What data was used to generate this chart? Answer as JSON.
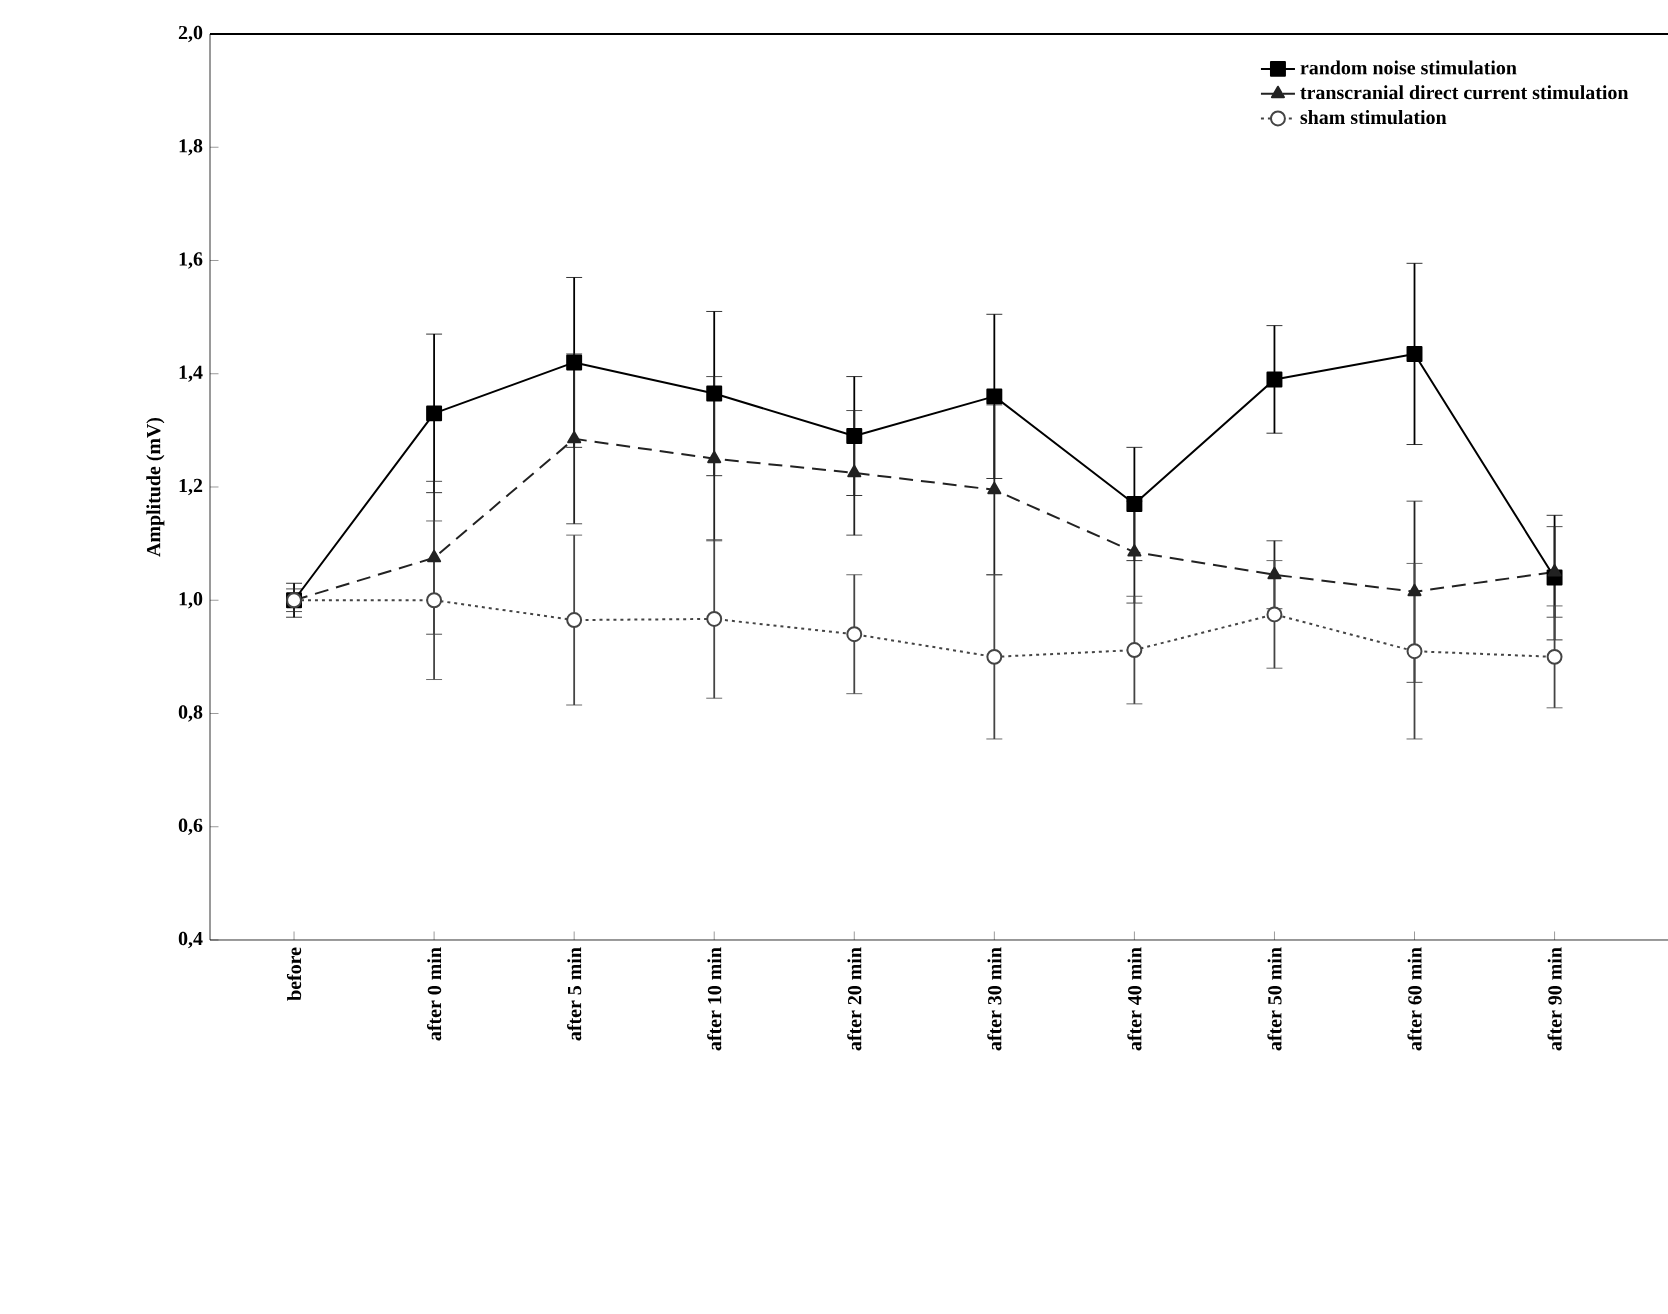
{
  "chart_data": {
    "type": "line",
    "ylabel": "Amplitude (mV)",
    "categories": [
      "before",
      "after 0 min",
      "after 5 min",
      "after 10 min",
      "after 20 min",
      "after 30 min",
      "after 40 min",
      "after 50 min",
      "after 60 min",
      "after 90 min"
    ],
    "series": [
      {
        "name": "random noise stimulation",
        "color": "#000000",
        "marker": "square",
        "line_style": "solid",
        "values": [
          1.0,
          1.33,
          1.42,
          1.365,
          1.29,
          1.36,
          1.17,
          1.39,
          1.435,
          1.04
        ],
        "errors": [
          0.03,
          0.14,
          0.15,
          0.145,
          0.105,
          0.145,
          0.1,
          0.095,
          0.16,
          0.11
        ]
      },
      {
        "name": "transcranial direct current stimulation",
        "color": "#222222",
        "marker": "triangle",
        "line_style": "dashed",
        "values": [
          1.0,
          1.075,
          1.285,
          1.25,
          1.225,
          1.195,
          1.085,
          1.045,
          1.015,
          1.05
        ],
        "errors": [
          0.02,
          0.135,
          0.15,
          0.145,
          0.11,
          0.15,
          0.09,
          0.06,
          0.16,
          0.08
        ]
      },
      {
        "name": "sham stimulation",
        "color": "#444444",
        "marker": "circle",
        "line_style": "dotted",
        "values": [
          1.0,
          1.0,
          0.965,
          0.967,
          0.94,
          0.9,
          0.912,
          0.975,
          0.91,
          0.9
        ],
        "errors": [
          0.012,
          0.14,
          0.15,
          0.14,
          0.105,
          0.145,
          0.095,
          0.095,
          0.155,
          0.09
        ]
      }
    ],
    "ylim": [
      0.4,
      2.0
    ],
    "yticks": [
      {
        "value": 0.4,
        "label": "0,4"
      },
      {
        "value": 0.6,
        "label": "0,6"
      },
      {
        "value": 0.8,
        "label": "0,8"
      },
      {
        "value": 1.0,
        "label": "1,0"
      },
      {
        "value": 1.2,
        "label": "1,2"
      },
      {
        "value": 1.4,
        "label": "1,4"
      },
      {
        "value": 1.6,
        "label": "1,6"
      },
      {
        "value": 1.8,
        "label": "1,8"
      },
      {
        "value": 2.0,
        "label": "2,0"
      }
    ],
    "legend": "top right",
    "grid": false
  }
}
